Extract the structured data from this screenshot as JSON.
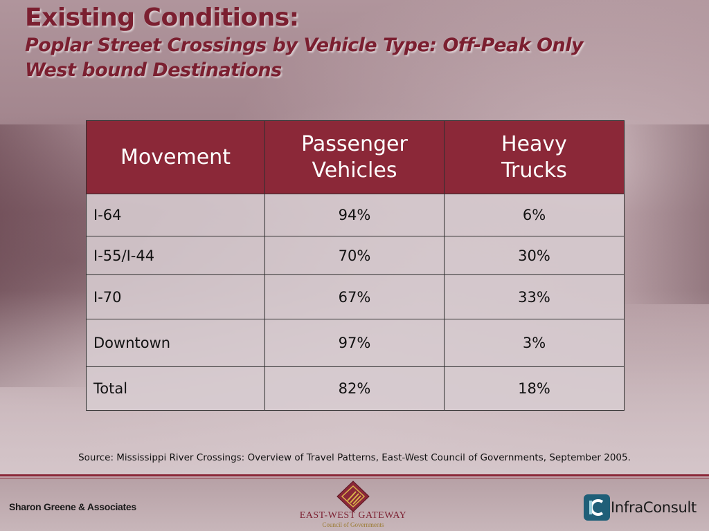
{
  "header": {
    "title": "Existing Conditions:",
    "subtitle_line1": "Poplar Street Crossings by Vehicle Type: Off-Peak Only",
    "subtitle_line2": "West bound Destinations"
  },
  "table": {
    "columns": [
      {
        "line1": "Movement",
        "line2": ""
      },
      {
        "line1": "Passenger",
        "line2": "Vehicles"
      },
      {
        "line1": "Heavy",
        "line2": "Trucks"
      }
    ],
    "rows": [
      {
        "movement": "I-64",
        "passenger": "94%",
        "trucks": "6%"
      },
      {
        "movement": "I-55/I-44",
        "passenger": "70%",
        "trucks": "30%"
      },
      {
        "movement": "I-70",
        "passenger": "67%",
        "trucks": "33%"
      },
      {
        "movement": "Downtown",
        "passenger": "97%",
        "trucks": "3%"
      },
      {
        "movement": "Total",
        "passenger": "82%",
        "trucks": "18%"
      }
    ]
  },
  "source": "Source: Mississippi River Crossings: Overview of Travel Patterns, East-West Council of Governments, September 2005.",
  "footer": {
    "left_text": "Sharon Greene & Associates",
    "center_name": "EAST-WEST GATEWAY",
    "center_sub": "Council of Governments",
    "right_name": "InfraConsult",
    "logo_icon": "ewg-diamond-logo",
    "right_icon": "infraconsult-logo"
  },
  "colors": {
    "accent": "#8b2838",
    "title": "#7b1f30"
  }
}
